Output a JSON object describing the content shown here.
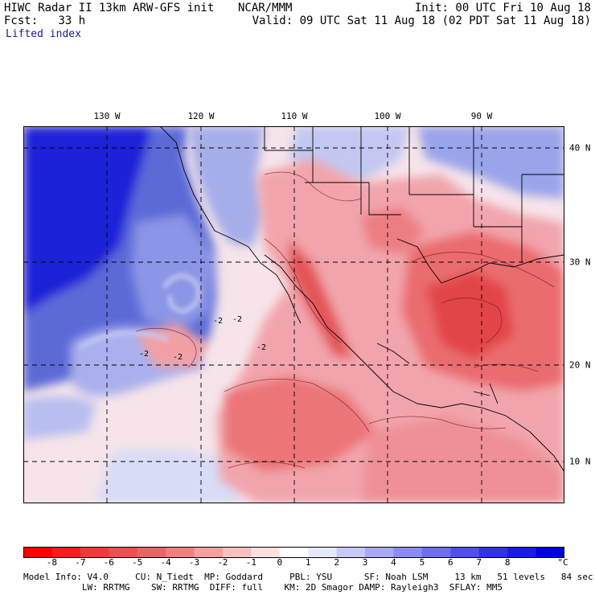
{
  "header": {
    "line1_left": "HIWC Radar II 13km ARW-GFS init",
    "line1_center": "NCAR/MMM",
    "line1_right": "Init: 00 UTC Fri 10 Aug 18",
    "line2_left": "Fcst:   33 h",
    "line2_right": "Valid: 09 UTC Sat 11 Aug 18 (02 PDT Sat 11 Aug 18)",
    "field_name": "Lifted index"
  },
  "map": {
    "longitude_labels": [
      "130 W",
      "120 W",
      "110 W",
      "100 W",
      "90 W"
    ],
    "latitude_labels": [
      "40 N",
      "30 N",
      "20 N",
      "10 N"
    ],
    "contour_labels": [
      "-2",
      "-2",
      "-2",
      "-2",
      "-2"
    ],
    "colors": {
      "ocean_stable": "#1a1ae6",
      "stable_light": "#c8c8f5",
      "neutral": "#fff0f0",
      "unstable_light": "#f5a0a0",
      "unstable_strong": "#e63232"
    }
  },
  "colorbar": {
    "labels": [
      "-8",
      "-7",
      "-6",
      "-5",
      "-4",
      "-3",
      "-2",
      "-1",
      "0",
      "1",
      "2",
      "3",
      "4",
      "5",
      "6",
      "7",
      "8"
    ],
    "unit": "°C",
    "colors": [
      "#ff0000",
      "#f81c1c",
      "#f23838",
      "#ec5050",
      "#e66666",
      "#ee8080",
      "#f4a0a0",
      "#f8c0c0",
      "#fce0e0",
      "#ffffff",
      "#e8e8fc",
      "#c8c8f8",
      "#a8a8f4",
      "#8c8cf0",
      "#6e6eec",
      "#5050e8",
      "#3232e4",
      "#1a1ae0",
      "#0000dc"
    ]
  },
  "model_info": {
    "line1": "Model Info: V4.0     CU: N_Tiedt  MP: Goddard     PBL: YSU      SF: Noah LSM     13 km   51 levels   84 sec",
    "line2": "           LW: RRTMG    SW: RRTMG  DIFF: full    KM: 2D Smagor DAMP: Rayleigh3  SFLAY: MM5"
  }
}
